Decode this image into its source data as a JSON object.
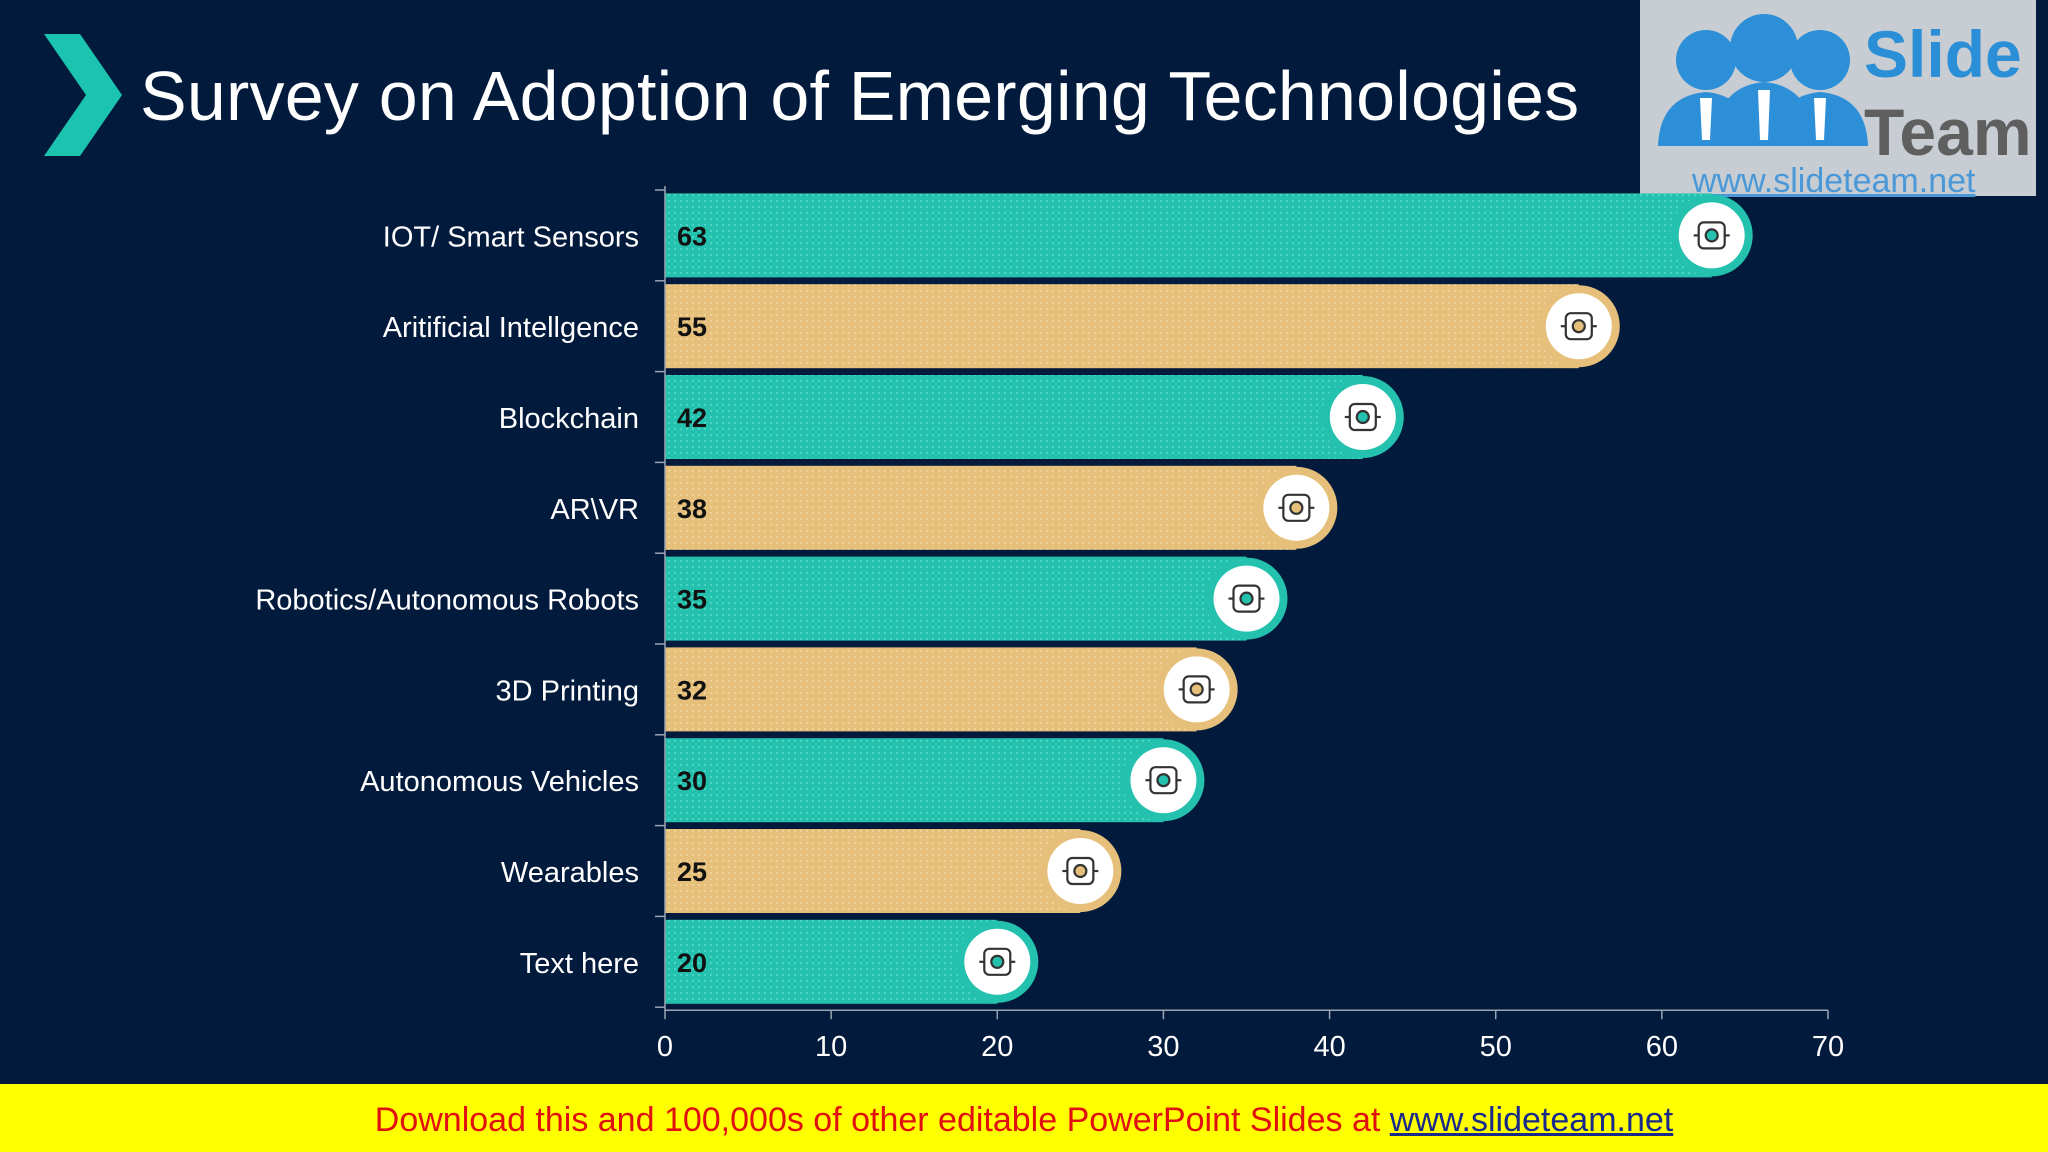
{
  "title": "Survey on Adoption of Emerging Technologies",
  "brand": {
    "name_line1": "Slide",
    "name_line2": "Team",
    "url": "www.slideteam.net",
    "icon": "three-people-logo-icon"
  },
  "footer": {
    "text": "Download this and 100,000s of other editable PowerPoint Slides at ",
    "link": "www.slideteam.net"
  },
  "colors": {
    "background": "#021a3b",
    "teal": "#23c1ae",
    "tan": "#e6c07a",
    "footer_bg": "#ffff00",
    "footer_text": "#e01010"
  },
  "chart_data": {
    "type": "bar",
    "orientation": "horizontal",
    "categories": [
      "IOT/ Smart Sensors",
      "Aritificial Intellgence",
      "Blockchain",
      "AR\\VR",
      "Robotics/Autonomous Robots",
      "3D Printing",
      "Autonomous Vehicles",
      "Wearables",
      "Text here"
    ],
    "values": [
      63,
      55,
      42,
      38,
      35,
      32,
      30,
      25,
      20
    ],
    "bar_colors": [
      "teal",
      "tan",
      "teal",
      "tan",
      "teal",
      "tan",
      "teal",
      "tan",
      "teal"
    ],
    "icons": [
      "network-cloud-icon",
      "brain-circuit-icon",
      "blockchain-lock-icon",
      "vr-headset-icon",
      "robot-icon",
      "3d-printer-icon",
      "autonomous-car-icon",
      "smart-glove-icon",
      "lightbulb-icon"
    ],
    "xlim": [
      0,
      70
    ],
    "xticks": [
      0,
      10,
      20,
      30,
      40,
      50,
      60,
      70
    ],
    "title": "",
    "xlabel": "",
    "ylabel": "",
    "grid": false,
    "data_labels": true
  }
}
